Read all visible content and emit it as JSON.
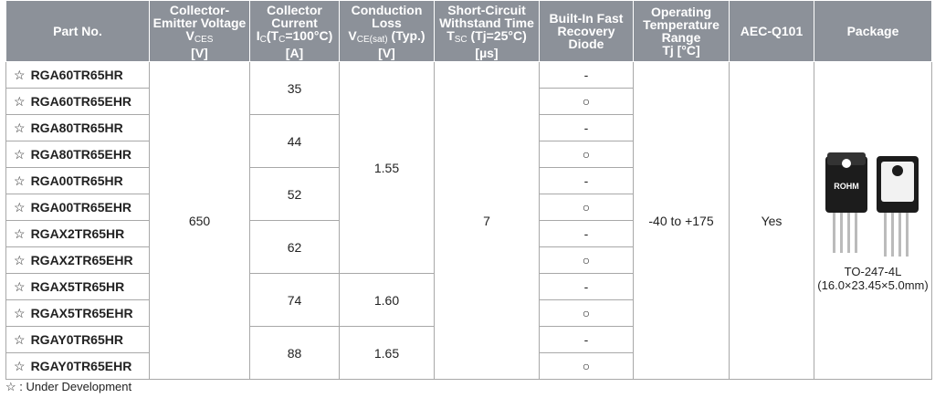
{
  "header": {
    "columns": [
      [
        [
          {
            "text": "Part No."
          }
        ]
      ],
      [
        [
          {
            "text": "Collector-"
          }
        ],
        [
          {
            "text": "Emitter Voltage"
          }
        ],
        [
          {
            "text": "V"
          },
          {
            "text": "CES",
            "sub": true
          }
        ],
        [
          {
            "text": "[V]"
          }
        ]
      ],
      [
        [
          {
            "text": "Collector"
          }
        ],
        [
          {
            "text": "Current"
          }
        ],
        [
          {
            "text": "I"
          },
          {
            "text": "C",
            "sub": true
          },
          {
            "text": "(T"
          },
          {
            "text": "C",
            "sub": true
          },
          {
            "text": "=100°C)"
          }
        ],
        [
          {
            "text": "[A]"
          }
        ]
      ],
      [
        [
          {
            "text": "Conduction"
          }
        ],
        [
          {
            "text": "Loss"
          }
        ],
        [
          {
            "text": "V"
          },
          {
            "text": "CE(sat)",
            "sub": true
          },
          {
            "text": " (Typ.)"
          }
        ],
        [
          {
            "text": "[V]"
          }
        ]
      ],
      [
        [
          {
            "text": "Short-Circuit"
          }
        ],
        [
          {
            "text": "Withstand Time"
          }
        ],
        [
          {
            "text": "T"
          },
          {
            "text": "SC",
            "sub": true
          },
          {
            "text": " (Tj=25°C)"
          }
        ],
        [
          {
            "text": "[µs]"
          }
        ]
      ],
      [
        [
          {
            "text": "Built-In Fast"
          }
        ],
        [
          {
            "text": "Recovery"
          }
        ],
        [
          {
            "text": "Diode"
          }
        ]
      ],
      [
        [
          {
            "text": "Operating"
          }
        ],
        [
          {
            "text": "Temperature"
          }
        ],
        [
          {
            "text": "Range"
          }
        ],
        [
          {
            "text": "Tj [°C]"
          }
        ]
      ],
      [
        [
          {
            "text": "AEC-Q101"
          }
        ]
      ],
      [
        [
          {
            "text": "Package"
          }
        ]
      ]
    ]
  },
  "table": {
    "status_symbol": "☆",
    "voltage": "650",
    "short_circuit_time": "7",
    "temperature_range": "-40 to +175",
    "aec_q101": "Yes",
    "package": {
      "marking": "ROHM",
      "name": "TO-247-4L",
      "dimensions": "(16.0×23.45×5.0mm)"
    },
    "loss_groups": [
      {
        "loss": "1.55",
        "current_groups": [
          {
            "current": "35",
            "parts": [
              {
                "part": "RGA60TR65HR",
                "diode": "-"
              },
              {
                "part": "RGA60TR65EHR",
                "diode": "○"
              }
            ]
          },
          {
            "current": "44",
            "parts": [
              {
                "part": "RGA80TR65HR",
                "diode": "-"
              },
              {
                "part": "RGA80TR65EHR",
                "diode": "○"
              }
            ]
          },
          {
            "current": "52",
            "parts": [
              {
                "part": "RGA00TR65HR",
                "diode": "-"
              },
              {
                "part": "RGA00TR65EHR",
                "diode": "○"
              }
            ]
          },
          {
            "current": "62",
            "parts": [
              {
                "part": "RGAX2TR65HR",
                "diode": "-"
              },
              {
                "part": "RGAX2TR65EHR",
                "diode": "○"
              }
            ]
          }
        ]
      },
      {
        "loss": "1.60",
        "current_groups": [
          {
            "current": "74",
            "parts": [
              {
                "part": "RGAX5TR65HR",
                "diode": "-"
              },
              {
                "part": "RGAX5TR65EHR",
                "diode": "○"
              }
            ]
          }
        ]
      },
      {
        "loss": "1.65",
        "current_groups": [
          {
            "current": "88",
            "parts": [
              {
                "part": "RGAY0TR65HR",
                "diode": "-"
              },
              {
                "part": "RGAY0TR65EHR",
                "diode": "○"
              }
            ]
          }
        ]
      }
    ]
  },
  "footnote": "☆ : Under Development"
}
